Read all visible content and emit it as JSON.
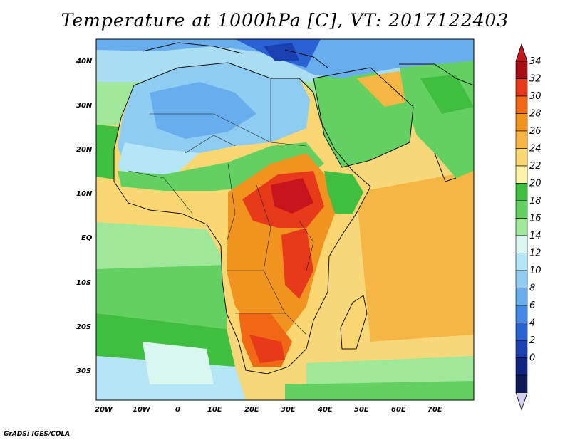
{
  "title": "Temperature at 1000hPa [C], VT: 2017122403",
  "credit": "GrADS: IGES/COLA",
  "lat_ticks": [
    "40N",
    "30N",
    "20N",
    "10N",
    "EQ",
    "10S",
    "20S",
    "30S"
  ],
  "lon_ticks": [
    "20W",
    "10W",
    "0",
    "10E",
    "20E",
    "30E",
    "40E",
    "50E",
    "60E",
    "70E"
  ],
  "colorbar": {
    "levels": [
      "34",
      "32",
      "30",
      "28",
      "26",
      "24",
      "22",
      "20",
      "18",
      "16",
      "14",
      "12",
      "10",
      "8",
      "6",
      "4",
      "2",
      "0"
    ],
    "colors_high_to_low": [
      "#a50f15",
      "#e8391a",
      "#f06813",
      "#f2931f",
      "#f6b643",
      "#fad771",
      "#fff3a8",
      "#3fbe3f",
      "#62d162",
      "#9fe89a",
      "#d9f7f0",
      "#b5e6f8",
      "#8fccf2",
      "#68aded",
      "#4688e6",
      "#2a62d4",
      "#1a3fb0",
      "#10257f",
      "#0a1a5a"
    ],
    "over_color": "#c4161c",
    "under_color": "#d8cdf2"
  },
  "colors": {
    "ocean_cool": "#5fc86a",
    "ocean_warm": "#f7d77a",
    "land_hot": "#e8391a",
    "land_cool": "#8fccf2"
  }
}
